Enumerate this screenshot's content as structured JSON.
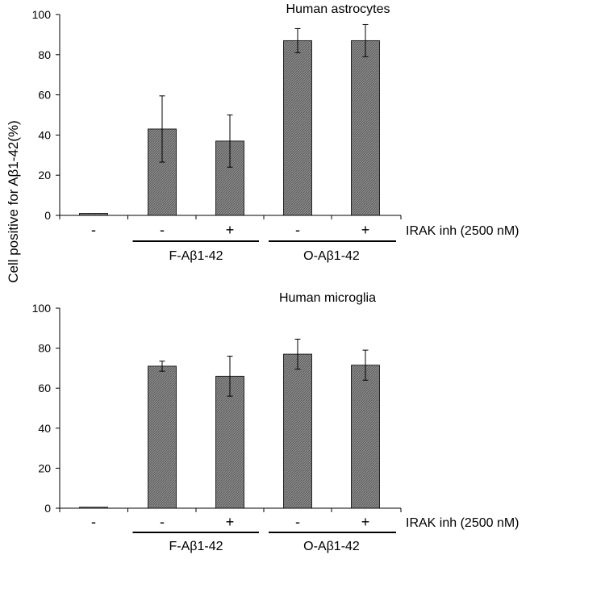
{
  "figure": {
    "shared_ylabel": "Cell positive for Aβ1-42(%)"
  },
  "chart_data": [
    {
      "type": "bar",
      "title": "Human astrocytes",
      "categories": [
        "-",
        "-",
        "+",
        "-",
        "+"
      ],
      "values": [
        1,
        43,
        37,
        87,
        87
      ],
      "errors": [
        0,
        16.5,
        13,
        6,
        8
      ],
      "ylim": [
        0,
        100
      ],
      "yticks": [
        "0",
        "20",
        "40",
        "60",
        "80",
        "100"
      ],
      "ylabel": "Cell positive for Aβ1-42(%)",
      "treatment_label": "IRAK inh (2500 nM)",
      "groups": [
        {
          "label": "F-Aβ1-42",
          "span": [
            1,
            2
          ]
        },
        {
          "label": "O-Aβ1-42",
          "span": [
            3,
            4
          ]
        }
      ],
      "bar_color": "#7a7a7a",
      "grid": false,
      "legend": "none"
    },
    {
      "type": "bar",
      "title": "Human microglia",
      "categories": [
        "-",
        "-",
        "+",
        "-",
        "+"
      ],
      "values": [
        0.5,
        71,
        66,
        77,
        71.5
      ],
      "errors": [
        0,
        2.5,
        10,
        7.5,
        7.5
      ],
      "ylim": [
        0,
        100
      ],
      "yticks": [
        "0",
        "20",
        "40",
        "60",
        "80",
        "100"
      ],
      "ylabel": "Cell positive for Aβ1-42(%)",
      "treatment_label": "IRAK inh (2500 nM)",
      "groups": [
        {
          "label": "F-Aβ1-42",
          "span": [
            1,
            2
          ]
        },
        {
          "label": "O-Aβ1-42",
          "span": [
            3,
            4
          ]
        }
      ],
      "bar_color": "#7a7a7a",
      "grid": false,
      "legend": "none"
    }
  ]
}
